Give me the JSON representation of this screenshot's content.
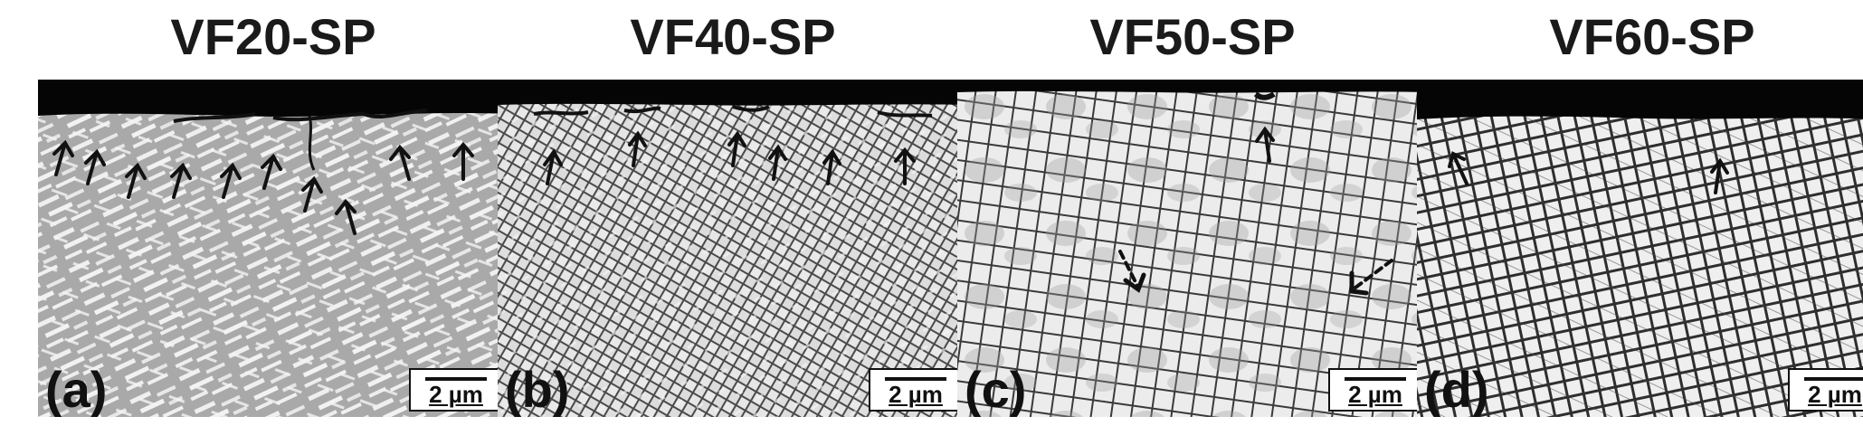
{
  "panels": [
    {
      "id": "a",
      "title": "VF20-SP",
      "label": "(a)",
      "scale": "2 µm",
      "texture": "lamellar",
      "arrow_style": "solid"
    },
    {
      "id": "b",
      "title": "VF40-SP",
      "label": "(b)",
      "scale": "2 µm",
      "texture": "woven",
      "arrow_style": "solid"
    },
    {
      "id": "c",
      "title": "VF50-SP",
      "label": "(c)",
      "scale": "2 µm",
      "texture": "cuboidal",
      "arrow_style": "solid+dashed"
    },
    {
      "id": "d",
      "title": "VF60-SP",
      "label": "(d)",
      "scale": "2 µm",
      "texture": "fine-cuboidal",
      "arrow_style": "solid"
    }
  ],
  "colors": {
    "sample_top": "#050505",
    "matrix_gray": "#cfcfcf",
    "precipitate": "#f2f2f2",
    "channel": "#3a3a3a"
  }
}
